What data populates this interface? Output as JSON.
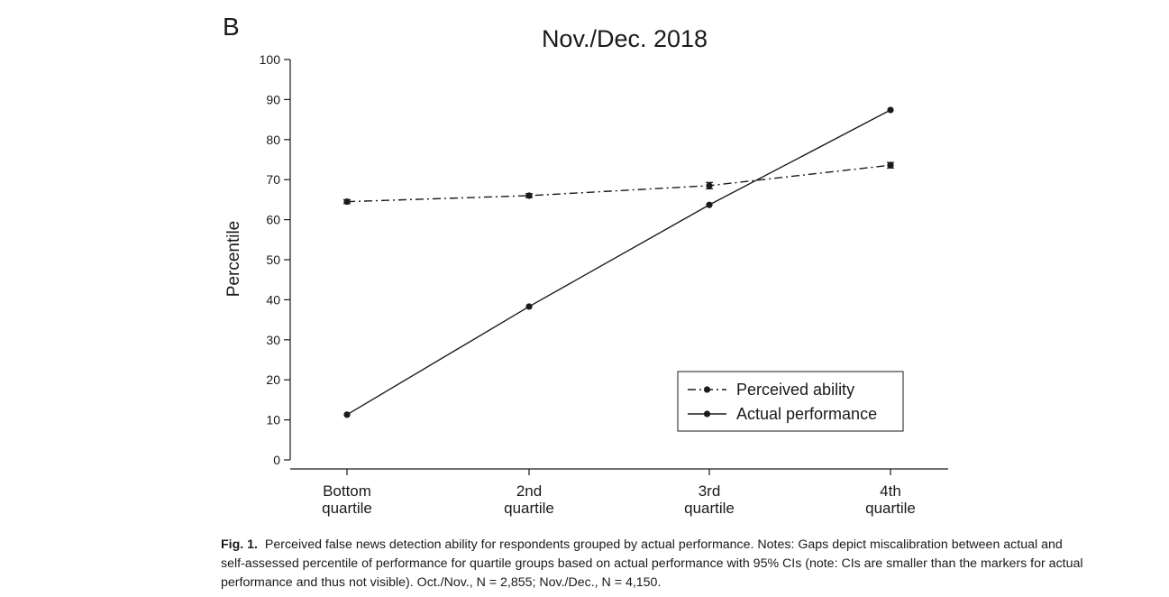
{
  "panel_label": "B",
  "caption": {
    "label": "Fig. 1.",
    "line1": "Perceived false news detection ability for respondents grouped by actual performance. Notes: Gaps depict miscalibration between actual and",
    "line2": "self-assessed percentile of performance for quartile groups based on actual performance with 95% CIs (note: CIs are smaller than the markers for actual",
    "line3": "performance and thus not visible). Oct./Nov., N = 2,855; Nov./Dec., N = 4,150."
  },
  "chart_data": {
    "type": "line",
    "title": "Nov./Dec. 2018",
    "xlabel": "",
    "ylabel": "Percentile",
    "categories": [
      [
        "Bottom",
        "quartile"
      ],
      [
        "2nd",
        "quartile"
      ],
      [
        "3rd",
        "quartile"
      ],
      [
        "4th",
        "quartile"
      ]
    ],
    "ylim": [
      0,
      100
    ],
    "yticks": [
      0,
      10,
      20,
      30,
      40,
      50,
      60,
      70,
      80,
      90,
      100
    ],
    "grid": false,
    "legend_position": "bottom-right",
    "series": [
      {
        "name": "Perceived ability",
        "line_style": "dash-dot",
        "color": "#1a1a1a",
        "values": [
          64.5,
          66.0,
          68.5,
          73.6
        ],
        "ci": [
          [
            64.0,
            65.0
          ],
          [
            65.5,
            66.5
          ],
          [
            67.7,
            69.3
          ],
          [
            72.9,
            74.3
          ]
        ]
      },
      {
        "name": "Actual performance",
        "line_style": "solid",
        "color": "#1a1a1a",
        "values": [
          11.3,
          38.3,
          63.7,
          87.4
        ]
      }
    ]
  }
}
